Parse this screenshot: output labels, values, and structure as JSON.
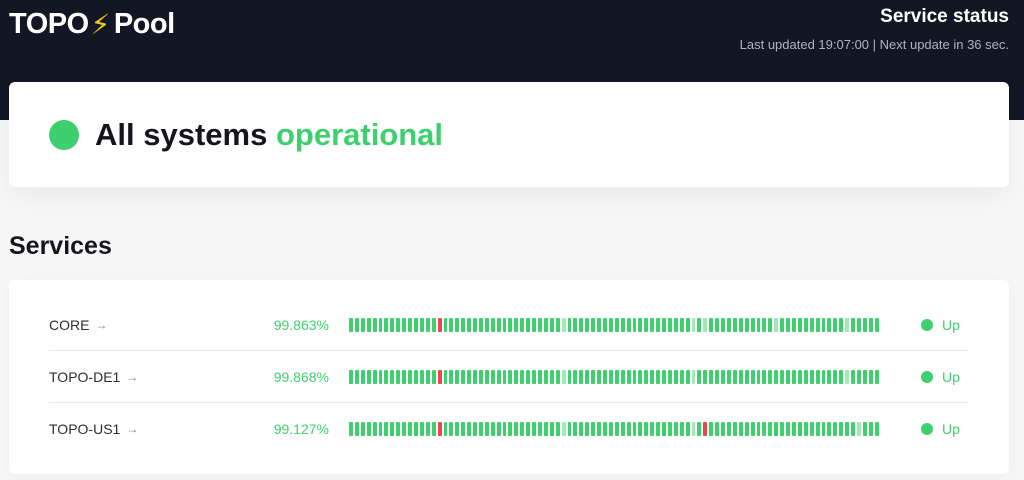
{
  "header": {
    "brand_left": "TOPO",
    "brand_bolt": "⚡",
    "brand_right": "Pool",
    "status_title": "Service status",
    "updated_text": "Last updated 19:07:00 | Next update in 36 sec."
  },
  "banner": {
    "text_main": "All systems",
    "text_status": "operational",
    "status_color": "#3ecf6e"
  },
  "services": {
    "heading": "Services",
    "bar_count": 90,
    "items": [
      {
        "name": "CORE",
        "arrow": "→",
        "uptime": "99.863%",
        "status": "Up",
        "down_bars": [
          15
        ],
        "light_bars": [
          36,
          58,
          60,
          72,
          84
        ]
      },
      {
        "name": "TOPO-DE1",
        "arrow": "→",
        "uptime": "99.868%",
        "status": "Up",
        "down_bars": [
          15
        ],
        "light_bars": [
          36,
          58,
          84
        ]
      },
      {
        "name": "TOPO-US1",
        "arrow": "→",
        "uptime": "99.127%",
        "status": "Up",
        "down_bars": [
          15,
          60
        ],
        "light_bars": [
          36,
          58,
          86
        ]
      }
    ]
  }
}
